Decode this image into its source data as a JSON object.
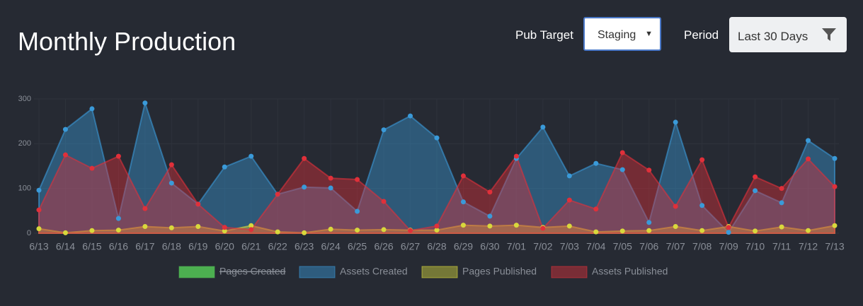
{
  "header": {
    "title": "Monthly Production",
    "pub_target_label": "Pub Target",
    "pub_target_value": "Staging",
    "period_label": "Period",
    "period_value": "Last 30 Days"
  },
  "chart_data": {
    "type": "area",
    "categories": [
      "6/13",
      "6/14",
      "6/15",
      "6/16",
      "6/17",
      "6/18",
      "6/19",
      "6/20",
      "6/21",
      "6/22",
      "6/23",
      "6/24",
      "6/25",
      "6/26",
      "6/27",
      "6/28",
      "6/29",
      "6/30",
      "7/01",
      "7/02",
      "7/03",
      "7/04",
      "7/05",
      "7/06",
      "7/07",
      "7/08",
      "7/09",
      "7/10",
      "7/11",
      "7/12",
      "7/13"
    ],
    "ylim": [
      0,
      300
    ],
    "yticks": [
      0,
      100,
      200,
      300
    ],
    "grid": true,
    "legend": "bottom",
    "series": [
      {
        "name": "Pages Created",
        "color": "#4caf50",
        "hidden": true
      },
      {
        "name": "Assets Created",
        "color": "#3a9ad9",
        "values": [
          96,
          232,
          278,
          33,
          291,
          112,
          65,
          148,
          172,
          87,
          103,
          101,
          49,
          231,
          262,
          213,
          70,
          38,
          167,
          237,
          128,
          156,
          142,
          24,
          248,
          62,
          2,
          95,
          68,
          207,
          167
        ]
      },
      {
        "name": "Pages Published",
        "color": "#d8d83c",
        "values": [
          10,
          1,
          6,
          7,
          15,
          12,
          15,
          5,
          17,
          3,
          1,
          9,
          7,
          8,
          7,
          7,
          18,
          16,
          18,
          13,
          16,
          3,
          5,
          6,
          15,
          6,
          15,
          5,
          14,
          6,
          17
        ]
      },
      {
        "name": "Assets Published",
        "color": "#e0303a",
        "values": [
          52,
          175,
          145,
          172,
          55,
          153,
          65,
          13,
          8,
          87,
          167,
          123,
          120,
          71,
          6,
          16,
          128,
          92,
          172,
          11,
          74,
          54,
          180,
          141,
          60,
          164,
          13,
          126,
          100,
          166,
          104
        ]
      }
    ]
  }
}
